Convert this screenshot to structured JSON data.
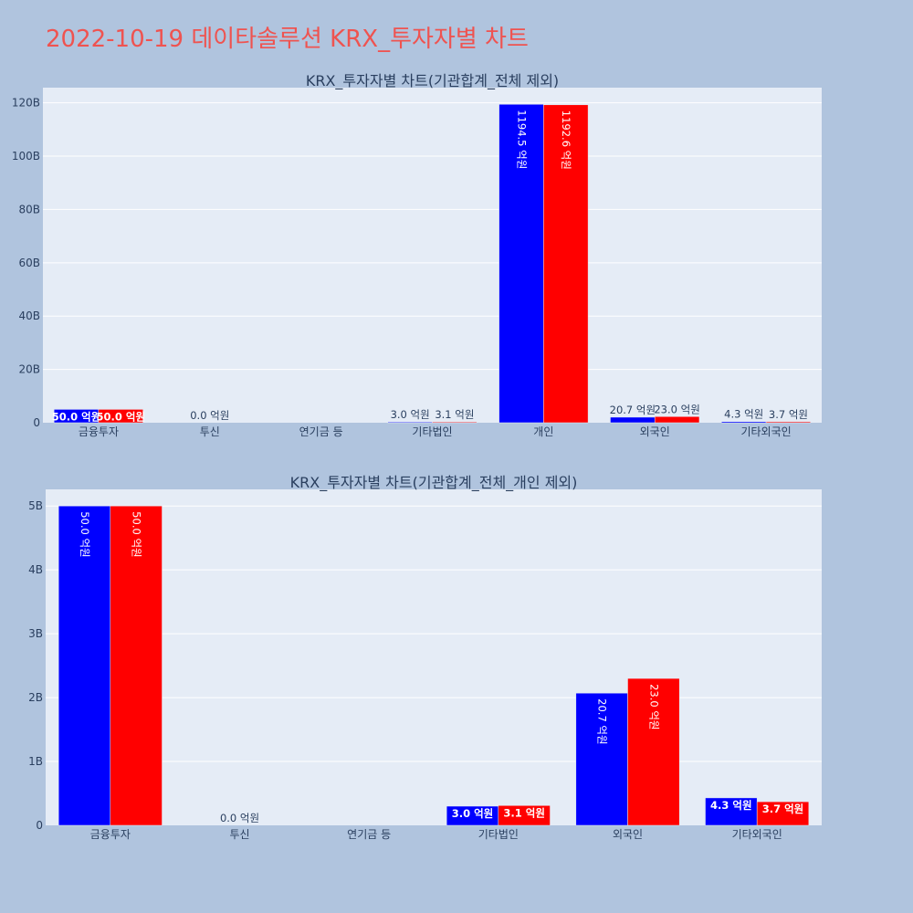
{
  "page": {
    "title": "2022-10-19 데이타솔루션 KRX_투자자별 차트"
  },
  "colors": {
    "background": "#b0c4de",
    "plot_bg": "#e5ecf6",
    "title": "#ef5350",
    "series_a": "#0000ff",
    "series_b": "#ff0000"
  },
  "chart_data": [
    {
      "type": "bar",
      "title": "KRX_투자자별 차트(기관합계_전체 제외)",
      "categories": [
        "금융투자",
        "투신",
        "연기금 등",
        "기타법인",
        "개인",
        "외국인",
        "기타외국인"
      ],
      "series": [
        {
          "color": "#0000ff",
          "values": [
            5000000000,
            0,
            0,
            300000000,
            119450000000,
            2070000000,
            430000000
          ],
          "labels": [
            "50.0 억원",
            "0.0 억원",
            "",
            "3.0 억원",
            "1194.5 억원",
            "20.7 억원",
            "4.3 억원"
          ]
        },
        {
          "color": "#ff0000",
          "values": [
            5000000000,
            0,
            0,
            310000000,
            119260000000,
            2300000000,
            370000000
          ],
          "labels": [
            "50.0 억원",
            "",
            "",
            "3.1 억원",
            "1192.6 억원",
            "23.0 억원",
            "3.7 억원"
          ]
        }
      ],
      "yticks": [
        0,
        20000000000,
        40000000000,
        60000000000,
        80000000000,
        100000000000,
        120000000000
      ],
      "yticklabels": [
        "0",
        "20B",
        "40B",
        "60B",
        "80B",
        "100B",
        "120B"
      ],
      "ylim": [
        0,
        125700000000
      ],
      "grid": true
    },
    {
      "type": "bar",
      "title": "KRX_투자자별 차트(기관합계_전체_개인 제외)",
      "categories": [
        "금융투자",
        "투신",
        "연기금 등",
        "기타법인",
        "외국인",
        "기타외국인"
      ],
      "series": [
        {
          "color": "#0000ff",
          "values": [
            5000000000,
            0,
            0,
            300000000,
            2070000000,
            430000000
          ],
          "labels": [
            "50.0 억원",
            "0.0 억원",
            "",
            "3.0 억원",
            "20.7 억원",
            "4.3 억원"
          ]
        },
        {
          "color": "#ff0000",
          "values": [
            5000000000,
            0,
            0,
            310000000,
            2300000000,
            370000000
          ],
          "labels": [
            "50.0 억원",
            "",
            "",
            "3.1 억원",
            "23.0 억원",
            "3.7 억원"
          ]
        }
      ],
      "yticks": [
        0,
        1000000000,
        2000000000,
        3000000000,
        4000000000,
        5000000000
      ],
      "yticklabels": [
        "0",
        "1B",
        "2B",
        "3B",
        "4B",
        "5B"
      ],
      "ylim": [
        0,
        5260000000
      ],
      "grid": true
    }
  ]
}
